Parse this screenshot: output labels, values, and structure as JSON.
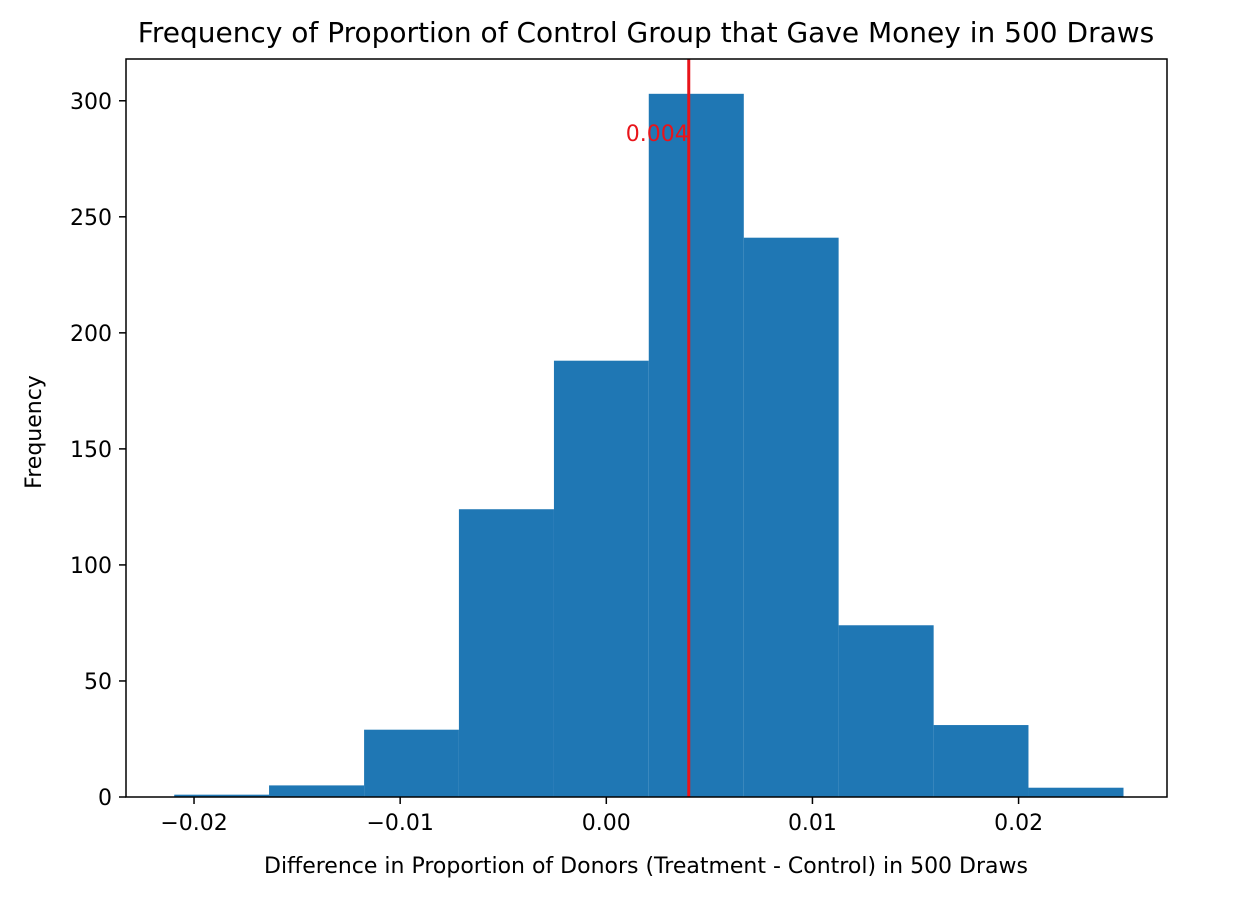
{
  "chart_data": {
    "type": "bar",
    "title": "Frequency of Proportion of Control Group that Gave Money in 500 Draws",
    "xlabel": "Difference in Proportion of Donors (Treatment - Control) in 500 Draws",
    "ylabel": "Frequency",
    "xlim": [
      -0.0233,
      0.0272
    ],
    "ylim": [
      0,
      318
    ],
    "bins": [
      {
        "x0": -0.02096,
        "x1": -0.01636,
        "count": 1
      },
      {
        "x0": -0.01636,
        "x1": -0.01175,
        "count": 5
      },
      {
        "x0": -0.01175,
        "x1": -0.00715,
        "count": 29
      },
      {
        "x0": -0.00715,
        "x1": -0.00254,
        "count": 124
      },
      {
        "x0": -0.00254,
        "x1": 0.00206,
        "count": 188
      },
      {
        "x0": 0.00206,
        "x1": 0.00667,
        "count": 303
      },
      {
        "x0": 0.00667,
        "x1": 0.01127,
        "count": 241
      },
      {
        "x0": 0.01127,
        "x1": 0.01588,
        "count": 74
      },
      {
        "x0": 0.01588,
        "x1": 0.02048,
        "count": 31
      },
      {
        "x0": 0.02048,
        "x1": 0.02509,
        "count": 4
      }
    ],
    "xticks": [
      -0.02,
      -0.01,
      0.0,
      0.01,
      0.02
    ],
    "xtick_labels": [
      "−0.02",
      "−0.01",
      "0.00",
      "0.01",
      "0.02"
    ],
    "yticks": [
      0,
      50,
      100,
      150,
      200,
      250,
      300
    ],
    "ytick_labels": [
      "0",
      "50",
      "100",
      "150",
      "200",
      "250",
      "300"
    ],
    "vline": {
      "x": 0.004,
      "label": "0.004",
      "color": "#e8141a"
    },
    "bar_color": "#1f77b4",
    "grid": false,
    "legend": "none"
  }
}
